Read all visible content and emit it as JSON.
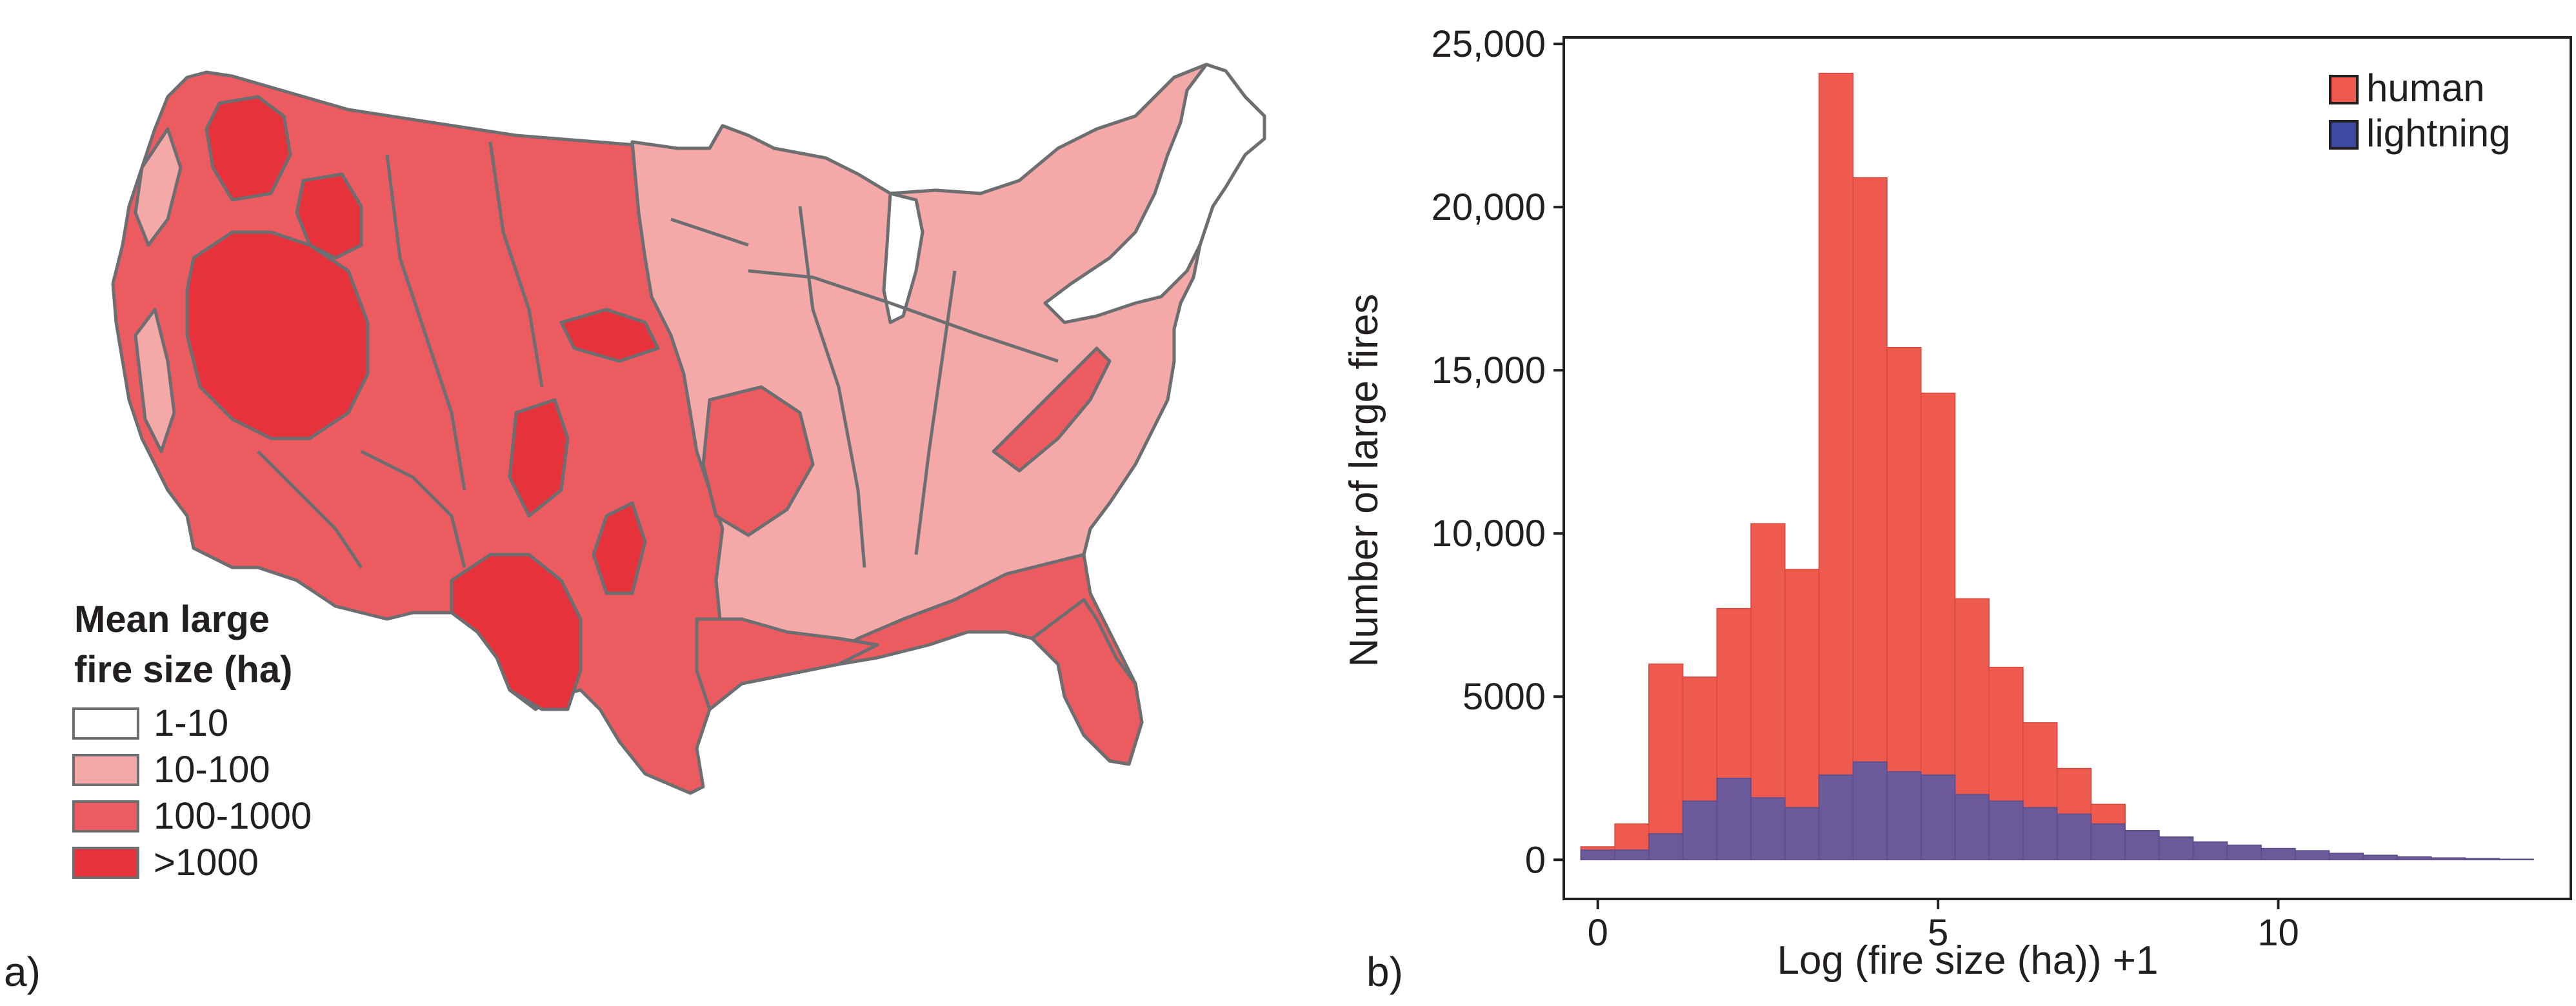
{
  "panels": {
    "a_label": "a)",
    "b_label": "b)"
  },
  "map": {
    "legend_title_line1": "Mean large",
    "legend_title_line2": "fire size (ha)",
    "legend": [
      {
        "label": "1-10",
        "color": "#ffffff"
      },
      {
        "label": "10-100",
        "color": "#f4a9a8"
      },
      {
        "label": "100-1000",
        "color": "#ec5b5f"
      },
      {
        "label": ">1000",
        "color": "#e8323b"
      }
    ],
    "border_color": "#6d6e71"
  },
  "chart_data": {
    "type": "bar",
    "xlabel": "Log (fire size (ha)) +1",
    "ylabel": "Number of large fires",
    "xlim": [
      -0.5,
      14.3
    ],
    "ylim": [
      -1200,
      25200
    ],
    "xticks": [
      0,
      5,
      10
    ],
    "yticks": [
      0,
      5000,
      10000,
      15000,
      20000,
      25000
    ],
    "ytick_labels": [
      "0",
      "5000",
      "10,000",
      "15,000",
      "20,000",
      "25,000"
    ],
    "grid": false,
    "legend_position": "top-right",
    "bin_width": 0.5,
    "bin_starts": [
      -0.25,
      0.25,
      0.75,
      1.25,
      1.75,
      2.25,
      2.75,
      3.25,
      3.75,
      4.25,
      4.75,
      5.25,
      5.75,
      6.25,
      6.75,
      7.25,
      7.75,
      8.25,
      8.75,
      9.25,
      9.75,
      10.25,
      10.75,
      11.25,
      11.75,
      12.25,
      12.75,
      13.25
    ],
    "series": [
      {
        "name": "human",
        "color": "#ef5a4e",
        "values": [
          400,
          1100,
          6000,
          5600,
          7700,
          10300,
          8900,
          24100,
          20900,
          15700,
          14300,
          8000,
          5900,
          4200,
          2800,
          1700,
          900,
          500,
          300,
          200,
          150,
          100,
          80,
          60,
          40,
          30,
          20,
          10
        ]
      },
      {
        "name": "lightning",
        "color": "#6a5a9a",
        "values": [
          300,
          300,
          800,
          1800,
          2500,
          1900,
          1600,
          2600,
          3000,
          2700,
          2600,
          2000,
          1800,
          1600,
          1400,
          1100,
          900,
          700,
          550,
          450,
          350,
          280,
          200,
          140,
          90,
          60,
          40,
          20
        ]
      }
    ]
  }
}
